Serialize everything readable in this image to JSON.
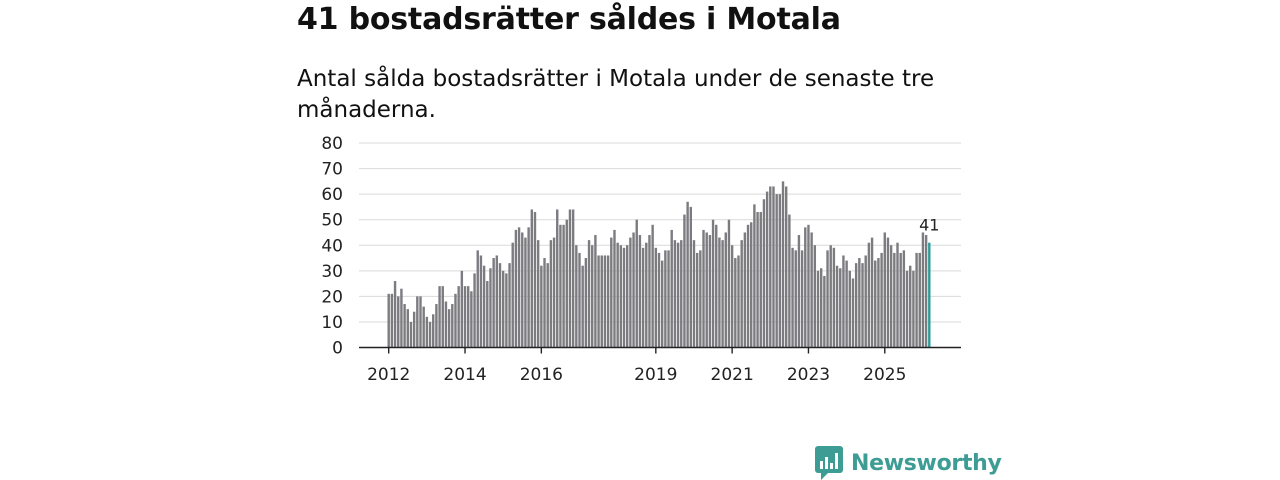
{
  "chart_data": {
    "type": "bar",
    "title": "41 bostadsrätter såldes i Motala",
    "subtitle": "Antal sålda bostadsrätter i Motala under de senaste tre månaderna.",
    "ylim": [
      0,
      80
    ],
    "yticks": [
      0,
      10,
      20,
      30,
      40,
      50,
      60,
      70,
      80
    ],
    "xticks": [
      "2012",
      "2014",
      "2016",
      "2019",
      "2021",
      "2023",
      "2025"
    ],
    "grid": true,
    "period": "rolling 3 months, monthly, 2012 – 2025",
    "values": [
      21,
      21,
      26,
      20,
      23,
      17,
      15,
      10,
      14,
      20,
      20,
      16,
      12,
      10,
      13,
      17,
      24,
      24,
      18,
      15,
      17,
      21,
      24,
      30,
      24,
      24,
      22,
      29,
      38,
      36,
      32,
      26,
      31,
      35,
      36,
      33,
      30,
      29,
      33,
      41,
      46,
      47,
      45,
      43,
      47,
      54,
      53,
      42,
      32,
      35,
      33,
      42,
      43,
      54,
      48,
      48,
      50,
      54,
      54,
      40,
      37,
      32,
      35,
      42,
      40,
      44,
      36,
      36,
      36,
      36,
      43,
      46,
      41,
      40,
      39,
      40,
      43,
      45,
      50,
      44,
      39,
      41,
      44,
      48,
      39,
      37,
      34,
      38,
      38,
      46,
      42,
      41,
      42,
      52,
      57,
      55,
      42,
      37,
      38,
      46,
      45,
      44,
      50,
      48,
      43,
      42,
      45,
      50,
      40,
      35,
      36,
      42,
      45,
      48,
      49,
      56,
      53,
      53,
      58,
      61,
      63,
      63,
      60,
      60,
      65,
      63,
      52,
      39,
      38,
      44,
      38,
      47,
      48,
      45,
      40,
      30,
      31,
      28,
      38,
      40,
      39,
      32,
      31,
      36,
      34,
      30,
      27,
      33,
      35,
      33,
      36,
      41,
      43,
      34,
      35,
      37,
      45,
      43,
      40,
      37,
      41,
      37,
      38,
      30,
      32,
      30,
      37,
      37,
      45,
      44,
      41
    ],
    "highlight_last": true,
    "end_label": "41",
    "colors": {
      "bar": "#7b7b80",
      "highlight": "#2b9c9a",
      "brand": "#3d9c94"
    }
  },
  "brand": {
    "name": "Newsworthy",
    "logo_icon": "newsworthy-logo-icon"
  }
}
